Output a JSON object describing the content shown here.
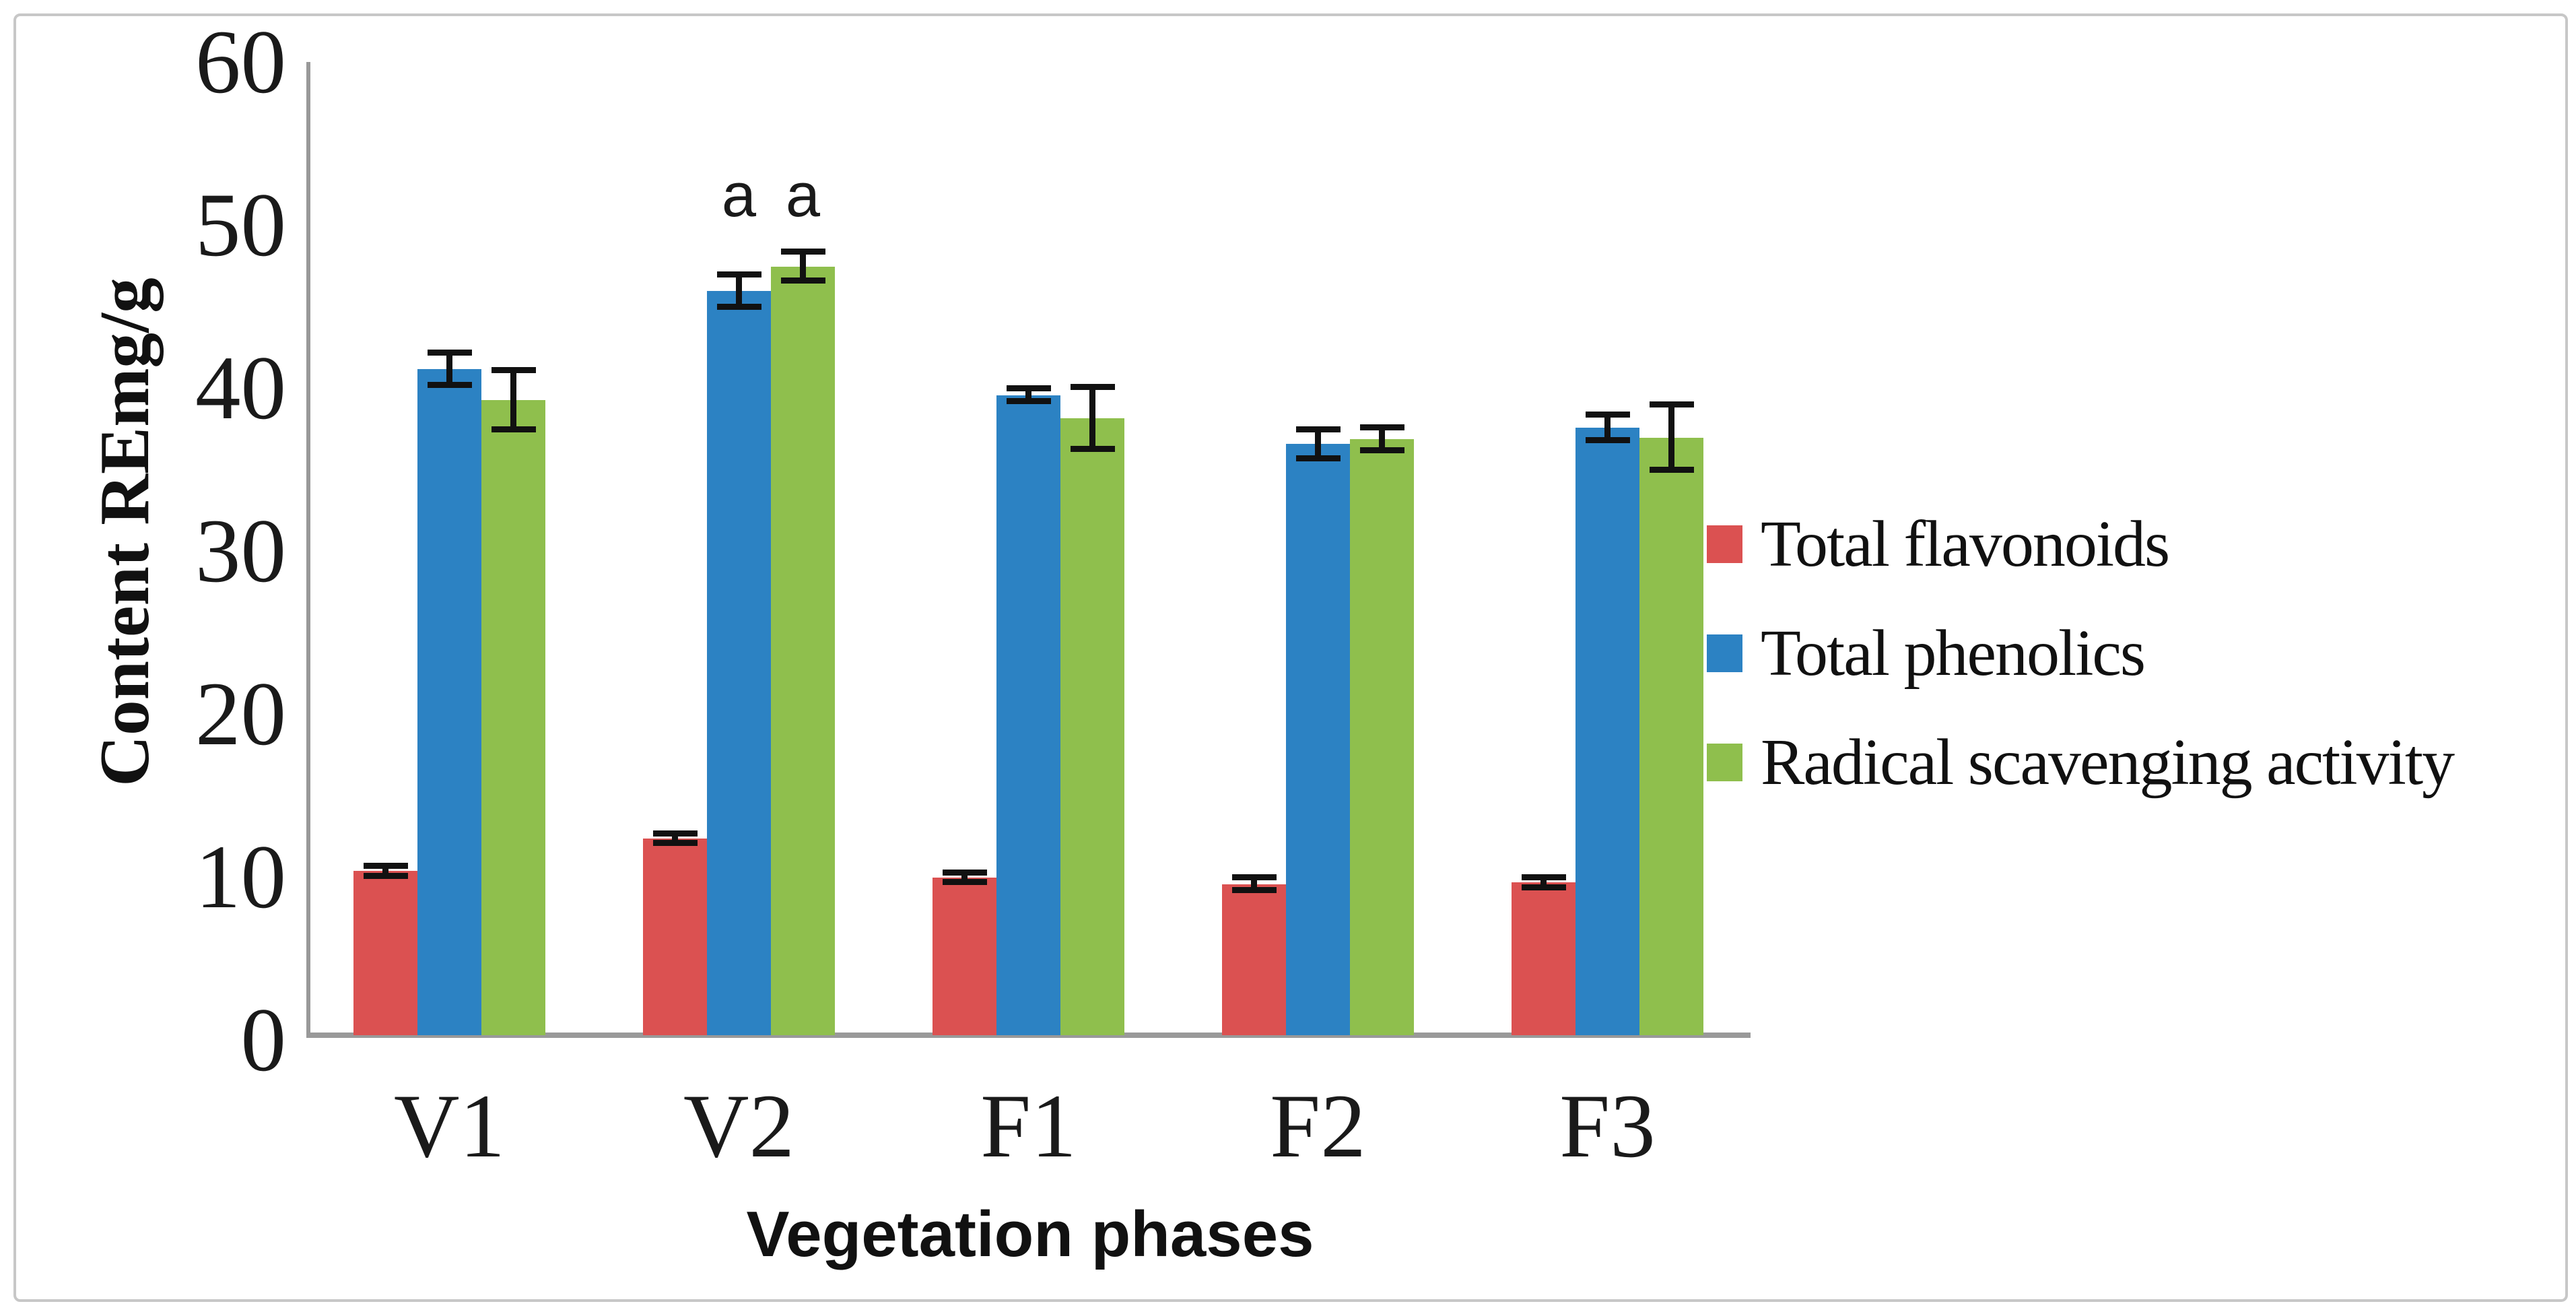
{
  "figure": {
    "background": "#ffffff",
    "border_color": "#c7c7c7",
    "axis_color": "#999999",
    "error_bar_color": "#111111"
  },
  "chart_data": {
    "type": "bar",
    "title": "",
    "xlabel": "Vegetation phases",
    "ylabel": "Content REmg/g",
    "categories": [
      "V1",
      "V2",
      "F1",
      "F2",
      "F3"
    ],
    "series": [
      {
        "name": "Total flavonoids",
        "color": "#db5151",
        "values": [
          10.4,
          12.4,
          10.0,
          9.6,
          9.7
        ],
        "errors": [
          0.3,
          0.3,
          0.3,
          0.4,
          0.3
        ]
      },
      {
        "name": "Total phenolics",
        "color": "#2c82c3",
        "values": [
          41.2,
          46.0,
          39.6,
          36.6,
          37.6
        ],
        "errors": [
          1.0,
          1.0,
          0.4,
          0.9,
          0.8
        ]
      },
      {
        "name": "Radical scavenging activity",
        "color": "#8fbf4d",
        "values": [
          39.3,
          47.5,
          38.2,
          36.9,
          37.0
        ],
        "errors": [
          1.8,
          0.9,
          1.9,
          0.7,
          2.0
        ]
      }
    ],
    "annotations": [
      {
        "text": "a",
        "category": "V2",
        "series": "Total phenolics"
      },
      {
        "text": "a",
        "category": "V2",
        "series": "Radical scavenging activity"
      }
    ],
    "y_ticks": [
      0,
      10,
      20,
      30,
      40,
      50,
      60
    ],
    "ylim": [
      0,
      60
    ],
    "grid": false,
    "legend_position": "right",
    "error_bars": true
  }
}
